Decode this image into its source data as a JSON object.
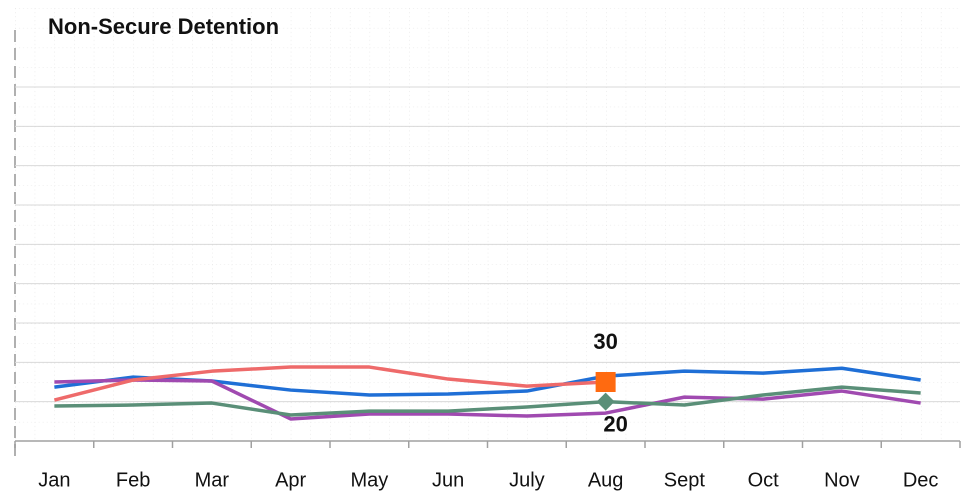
{
  "chart_data": {
    "type": "line",
    "title": "Non-Secure Detention",
    "categories": [
      "Jan",
      "Feb",
      "Mar",
      "Apr",
      "May",
      "Jun",
      "July",
      "Aug",
      "Sept",
      "Oct",
      "Nov",
      "Dec"
    ],
    "ylim": [
      0,
      180
    ],
    "yticks": [
      0,
      20,
      40,
      60,
      80,
      100,
      120,
      140,
      160,
      180
    ],
    "grid": true,
    "series": [
      {
        "color": "#1f6fd6",
        "values": [
          27.4,
          32.5,
          30.5,
          25.9,
          23.4,
          23.9,
          25.4,
          33,
          35.5,
          34.5,
          37,
          31
        ]
      },
      {
        "color": "#a04ab0",
        "values": [
          30,
          31,
          30.5,
          11.2,
          13.7,
          13.7,
          12.7,
          14.2,
          22.3,
          21.3,
          25.4,
          19.3
        ]
      },
      {
        "color": "#ee6a6a",
        "values": [
          20.8,
          31,
          35.5,
          37.6,
          37.6,
          31.5,
          27.9,
          30,
          null,
          null,
          null,
          null
        ],
        "value_labels": [
          null,
          null,
          null,
          null,
          null,
          null,
          null,
          "30",
          null,
          null,
          null,
          null
        ],
        "marker": "square",
        "marker_color": "#ff6a10",
        "label_position": "above"
      },
      {
        "color": "#5a8f78",
        "values": [
          17.8,
          18.3,
          19.3,
          13.2,
          15.2,
          15.2,
          17.3,
          20,
          18.3,
          23.4,
          27.4,
          24.4
        ],
        "value_labels": [
          null,
          null,
          null,
          null,
          null,
          null,
          null,
          "20",
          null,
          null,
          null,
          null
        ],
        "marker": "diamond",
        "marker_color": "#5a8f78",
        "label_position": "below"
      }
    ]
  }
}
